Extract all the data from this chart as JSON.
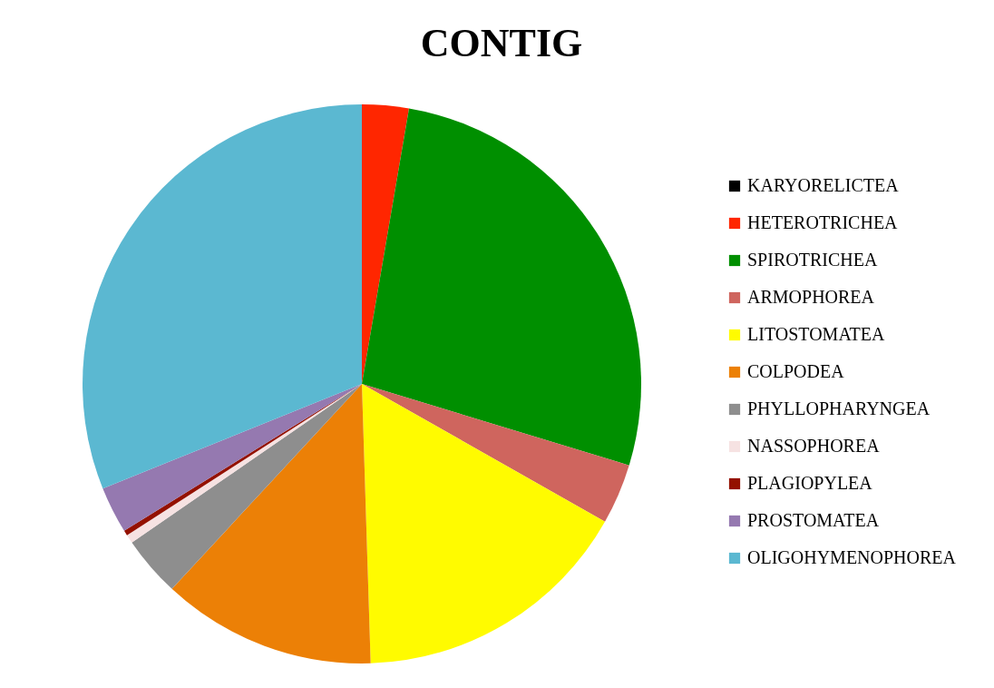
{
  "chart_data": {
    "type": "pie",
    "title": "CONTIG",
    "categories": [
      "KARYORELICTEA",
      "HETEROTRICHEA",
      "SPIROTRICHEA",
      "ARMOPHOREA",
      "LITOSTOMATEA",
      "COLPODEA",
      "PHYLLOPHARYNGEA",
      "NASSOPHOREA",
      "PLAGIOPYLEA",
      "PROSTOMATEA",
      "OLIGOHYMENOPHOREA"
    ],
    "values": [
      0,
      2.7,
      27.0,
      3.5,
      16.3,
      12.4,
      3.5,
      0.5,
      0.3,
      2.7,
      31.1
    ],
    "colors": [
      "#000000",
      "#ff2600",
      "#008f00",
      "#cf655e",
      "#fffb00",
      "#ec8006",
      "#8e8e8e",
      "#f6e2e2",
      "#941100",
      "#9579b0",
      "#5bb8d1"
    ],
    "legend": "right"
  }
}
